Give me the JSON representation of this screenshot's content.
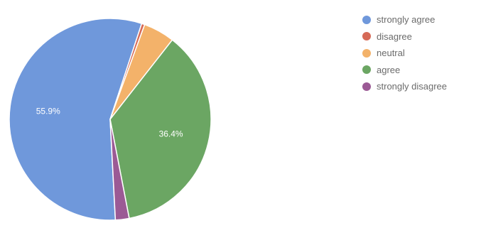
{
  "chart_data": {
    "type": "pie",
    "categories": [
      "strongly agree",
      "disagree",
      "neutral",
      "agree",
      "strongly disagree"
    ],
    "values": [
      55.9,
      0.5,
      5.0,
      36.4,
      2.2
    ],
    "labels": [
      "55.9%",
      "",
      "",
      "36.4%",
      ""
    ],
    "colors": [
      "#6f98db",
      "#d66a57",
      "#f3b26a",
      "#6ba663",
      "#9b5a95"
    ],
    "legend_position": "right"
  }
}
